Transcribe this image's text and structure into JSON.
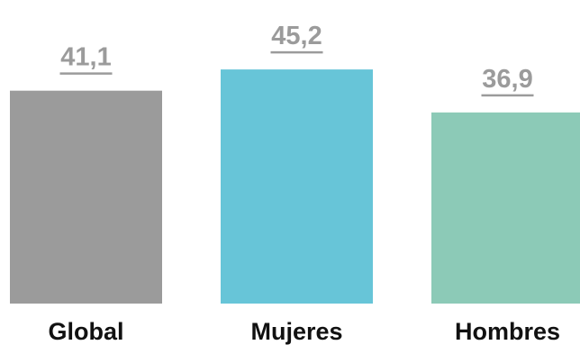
{
  "chart_data": {
    "type": "bar",
    "categories": [
      "Global",
      "Mujeres",
      "Hombres"
    ],
    "values": [
      41.1,
      45.2,
      36.9
    ],
    "value_labels": [
      "41,1",
      "45,2",
      "36,9"
    ],
    "colors": [
      "#9b9b9b",
      "#67c5d8",
      "#8ccab7"
    ],
    "label_color": "#9b9b9b",
    "title": "",
    "xlabel": "",
    "ylabel": "",
    "ylim": [
      0,
      48
    ],
    "grid": false,
    "legend": "none"
  }
}
